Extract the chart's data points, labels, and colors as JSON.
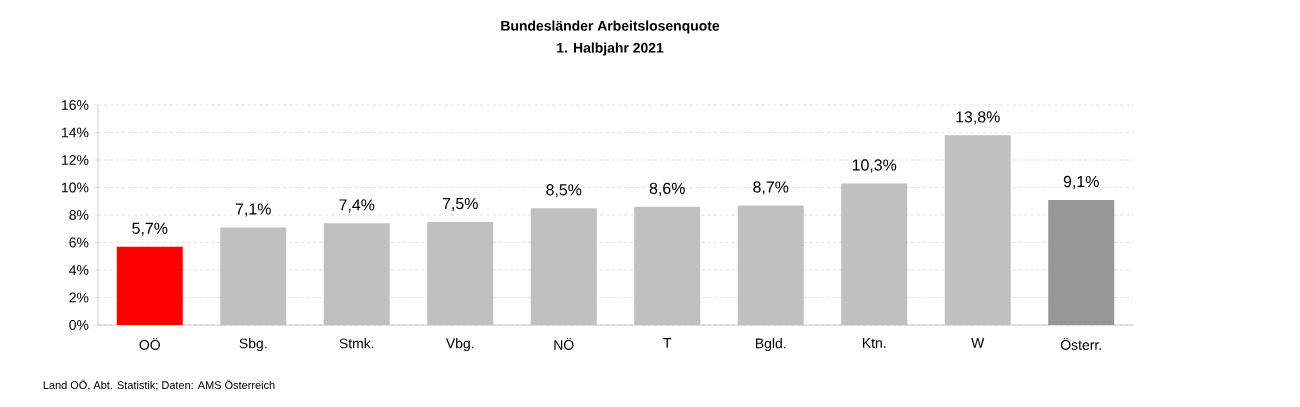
{
  "chart_data": {
    "type": "bar",
    "title": "Bundesländer Arbeitslosenquote",
    "subtitle": "1. Halbjahr 2021",
    "categories": [
      "OÖ",
      "Sbg.",
      "Stmk.",
      "Vbg.",
      "NÖ",
      "T",
      "Bgld.",
      "Ktn.",
      "W",
      "Österr."
    ],
    "values": [
      5.7,
      7.1,
      7.4,
      7.5,
      8.5,
      8.6,
      8.7,
      10.3,
      13.8,
      9.1
    ],
    "value_labels": [
      "5,7%",
      "7,1%",
      "7,4%",
      "7,5%",
      "8,5%",
      "8,6%",
      "8,7%",
      "10,3%",
      "13,8%",
      "9,1%"
    ],
    "colors": [
      "#ff0000",
      "#c0c0c0",
      "#c0c0c0",
      "#c0c0c0",
      "#c0c0c0",
      "#c0c0c0",
      "#c0c0c0",
      "#c0c0c0",
      "#c0c0c0",
      "#969696"
    ],
    "ylim": [
      0,
      16
    ],
    "yticks": [
      {
        "value": 0,
        "label": "0%"
      },
      {
        "value": 2,
        "label": "2%"
      },
      {
        "value": 4,
        "label": "4%"
      },
      {
        "value": 6,
        "label": "6%"
      },
      {
        "value": 8,
        "label": "8%"
      },
      {
        "value": 10,
        "label": "10%"
      },
      {
        "value": 12,
        "label": "12%"
      },
      {
        "value": 14,
        "label": "14%"
      },
      {
        "value": 16,
        "label": "16%"
      }
    ],
    "grid": "y",
    "annotations": [
      "Land OÖ, Abt. Statistik; Daten: AMS Österreich"
    ]
  }
}
